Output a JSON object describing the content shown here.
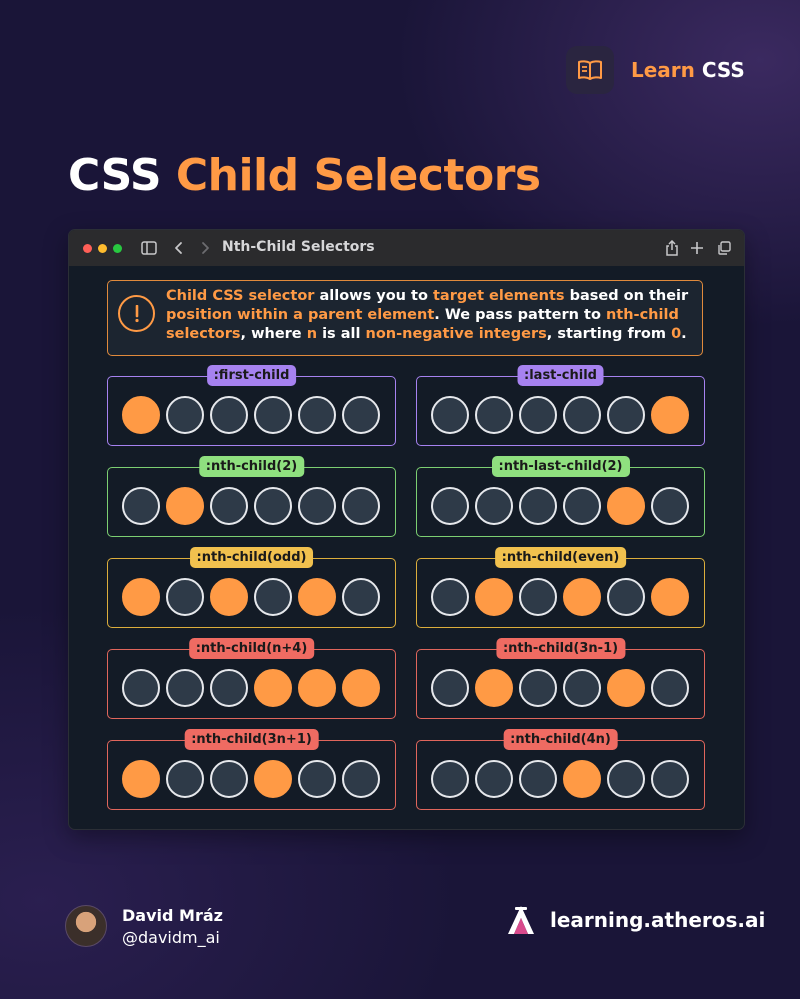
{
  "brand": {
    "accent": "Learn",
    "plain": "CSS"
  },
  "title": {
    "white": "CSS",
    "orange": "Child Selectors"
  },
  "window": {
    "title": "Nth-Child Selectors"
  },
  "info": {
    "parts": [
      {
        "t": "Child CSS selector",
        "hl": true
      },
      {
        "t": " allows you to ",
        "hl": false
      },
      {
        "t": "target elements",
        "hl": true
      },
      {
        "t": " based on their ",
        "hl": false
      },
      {
        "t": "position within a parent element",
        "hl": true
      },
      {
        "t": ". We pass pattern to ",
        "hl": false
      },
      {
        "t": "nth-child selectors",
        "hl": true
      },
      {
        "t": ", where ",
        "hl": false
      },
      {
        "t": "n",
        "hl": true
      },
      {
        "t": " is all ",
        "hl": false
      },
      {
        "t": "non-negative integers",
        "hl": true
      },
      {
        "t": ", starting from ",
        "hl": false
      },
      {
        "t": "0",
        "hl": true
      },
      {
        "t": ".",
        "hl": false
      }
    ]
  },
  "examples": [
    {
      "label": ":first-child",
      "color": "purple",
      "on": [
        1
      ]
    },
    {
      "label": ":last-child",
      "color": "purple",
      "on": [
        6
      ]
    },
    {
      "label": ":nth-child(2)",
      "color": "green",
      "on": [
        2
      ]
    },
    {
      "label": ":nth-last-child(2)",
      "color": "green",
      "on": [
        5
      ]
    },
    {
      "label": ":nth-child(odd)",
      "color": "yellow",
      "on": [
        1,
        3,
        5
      ]
    },
    {
      "label": ":nth-child(even)",
      "color": "yellow",
      "on": [
        2,
        4,
        6
      ]
    },
    {
      "label": ":nth-child(n+4)",
      "color": "red",
      "on": [
        4,
        5,
        6
      ]
    },
    {
      "label": ":nth-child(3n-1)",
      "color": "red",
      "on": [
        2,
        5
      ]
    },
    {
      "label": ":nth-child(3n+1)",
      "color": "red",
      "on": [
        1,
        4
      ]
    },
    {
      "label": ":nth-child(4n)",
      "color": "red",
      "on": [
        4
      ]
    }
  ],
  "author": {
    "name": "David Mráz",
    "handle": "@davidm_ai"
  },
  "site": {
    "url": "learning.atheros.ai"
  },
  "colors": {
    "accent": "#ff9a45",
    "background": "#1a1538",
    "window": "#131b26"
  }
}
